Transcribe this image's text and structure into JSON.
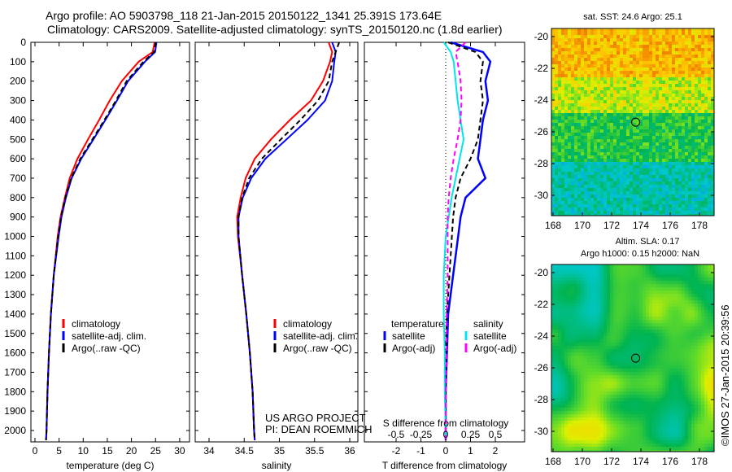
{
  "header": {
    "title1": "Argo profile: AO 5903798_118 21-Jan-2015 20150122_1341 25.391S 173.64E",
    "title2": "Climatology: CARS2009. Satellite-adjusted climatology: synTS_20150120.nc (1.8d earlier)"
  },
  "credit": {
    "project": "US ARGO PROJECT",
    "pi": "PI: DEAN ROEMMICH",
    "stamp": "©IMOS 27-Jan-2015 20:39:56"
  },
  "colors": {
    "clim": "#ff0000",
    "sat": "#0000ff",
    "argo": "#000000",
    "sat_s": "#00e5ee",
    "argo_s": "#ff00ff"
  },
  "chart_data": [
    {
      "type": "line",
      "id": "temperature",
      "xlabel": "temperature (deg C)",
      "xlim": [
        -1,
        31
      ],
      "xticks": [
        0,
        5,
        10,
        15,
        20,
        25,
        30
      ],
      "ylim": [
        0,
        2060
      ],
      "yticks": [
        0,
        100,
        200,
        300,
        400,
        500,
        600,
        700,
        800,
        900,
        1000,
        1100,
        1200,
        1300,
        1400,
        1500,
        1600,
        1700,
        1800,
        1900,
        2000
      ],
      "depth": [
        0,
        50,
        100,
        200,
        300,
        400,
        500,
        600,
        700,
        800,
        900,
        1000,
        1200,
        1400,
        1600,
        1800,
        2000,
        2050
      ],
      "legend": [
        "climatology",
        "satellite-adj. clim.",
        "Argo(..raw -QC)"
      ],
      "series": [
        {
          "name": "climatology",
          "values": [
            24.8,
            24.4,
            21.5,
            18,
            15.5,
            13.3,
            11,
            8.8,
            7.2,
            6.2,
            5.3,
            4.7,
            3.9,
            3.3,
            2.9,
            2.6,
            2.4,
            2.3
          ]
        },
        {
          "name": "satellite-adj. clim.",
          "values": [
            25.2,
            24.9,
            22.8,
            19.3,
            17,
            14.6,
            12.1,
            9.6,
            7.6,
            6.4,
            5.5,
            4.9,
            3.9,
            3.3,
            2.9,
            2.6,
            2.4,
            2.3
          ]
        },
        {
          "name": "Argo(..raw -QC)",
          "values": [
            25,
            24.7,
            22.5,
            19,
            16.8,
            14.4,
            11.9,
            9.4,
            7.5,
            6.3,
            5.4,
            4.8,
            3.9,
            3.3,
            2.9,
            2.6,
            2.4,
            2.3
          ]
        }
      ]
    },
    {
      "type": "line",
      "id": "salinity",
      "xlabel": "salinity",
      "xlim": [
        33.8,
        36.05
      ],
      "xticks": [
        34,
        34.5,
        35,
        35.5,
        36
      ],
      "depth": [
        0,
        50,
        100,
        200,
        300,
        400,
        500,
        600,
        700,
        800,
        900,
        1000,
        1200,
        1400,
        1600,
        1800,
        2000,
        2050
      ],
      "legend": [
        "climatology",
        "satellite-adj. clim.",
        "Argo(..raw -QC)"
      ],
      "series": [
        {
          "name": "climatology",
          "values": [
            35.7,
            35.75,
            35.72,
            35.62,
            35.45,
            35.15,
            34.88,
            34.65,
            34.52,
            34.45,
            34.4,
            34.41,
            34.47,
            34.53,
            34.58,
            34.62,
            34.64,
            34.65
          ]
        },
        {
          "name": "satellite-adj. clim.",
          "values": [
            35.75,
            35.8,
            35.78,
            35.75,
            35.65,
            35.4,
            35.1,
            34.8,
            34.6,
            34.48,
            34.42,
            34.42,
            34.47,
            34.53,
            34.58,
            34.62,
            34.64,
            34.65
          ]
        },
        {
          "name": "Argo(..raw -QC)",
          "values": [
            35.85,
            35.8,
            35.75,
            35.7,
            35.55,
            35.3,
            35.02,
            34.75,
            34.57,
            34.47,
            34.42,
            34.42,
            34.47,
            34.53,
            34.58,
            34.62,
            34.64,
            34.65
          ]
        }
      ]
    },
    {
      "type": "line",
      "id": "difference",
      "xlabel": "T difference from climatology",
      "x2label": "S difference from climatology",
      "xlim": [
        -3,
        3
      ],
      "xticks": [
        -2,
        -1,
        0,
        1,
        2
      ],
      "x2ticks": [
        "-0.5",
        "-0.25",
        "0",
        "0.25",
        "0.5"
      ],
      "s_to_t_scale": 4,
      "depth": [
        0,
        50,
        100,
        200,
        300,
        400,
        500,
        600,
        700,
        800,
        900,
        1000,
        1200,
        1400,
        1600,
        1800,
        2000,
        2050
      ],
      "legend_titles": [
        "temperature",
        "salinity"
      ],
      "legend": [
        "satellite",
        "Argo(-adj)",
        "satellite",
        "Argo(-adj)"
      ],
      "series": [
        {
          "name": "T satellite",
          "values": [
            0.2,
            1.5,
            1.8,
            1.6,
            1.7,
            1.5,
            1.4,
            1.3,
            1.6,
            0.8,
            0.6,
            0.5,
            0.3,
            0.1,
            0.05,
            0,
            0,
            0
          ]
        },
        {
          "name": "T Argo(-adj)",
          "values": [
            0.1,
            1.2,
            1.5,
            1.4,
            1.5,
            1.4,
            1.3,
            1.0,
            0.6,
            0.4,
            0.3,
            0.25,
            0.15,
            0.05,
            0,
            0,
            0,
            0
          ]
        },
        {
          "name": "S satellite",
          "values": [
            -0.02,
            0.05,
            0.08,
            0.1,
            0.12,
            0.15,
            0.18,
            0.14,
            0.1,
            0.06,
            0.03,
            0,
            -0.02,
            -0.02,
            -0.01,
            -0.01,
            0,
            0
          ]
        },
        {
          "name": "S Argo(-adj)",
          "values": [
            0.2,
            0.1,
            0.12,
            0.15,
            0.16,
            0.15,
            0.12,
            0.08,
            0.05,
            0.03,
            0.02,
            0.02,
            0.02,
            0.01,
            0.01,
            0,
            0,
            0
          ]
        }
      ]
    },
    {
      "type": "heatmap",
      "id": "sst-map",
      "title": "sat. SST: 24.6  Argo: 25.1",
      "xticks": [
        168,
        170,
        172,
        174,
        176,
        178
      ],
      "yticks": [
        -20,
        -22,
        -24,
        -26,
        -28,
        -30
      ],
      "xlim": [
        167.9,
        179.3
      ],
      "ylim": [
        -31.3,
        -19.5
      ],
      "marker": [
        173.64,
        -25.391
      ]
    },
    {
      "type": "heatmap",
      "id": "sla-map",
      "title": "Altim. SLA: 0.17",
      "title2": "Argo h1000: 0.15 h2000: NaN",
      "xticks": [
        168,
        170,
        172,
        174,
        176,
        178
      ],
      "yticks": [
        -20,
        -22,
        -24,
        -26,
        -28,
        -30
      ],
      "xlim": [
        167.9,
        179.3
      ],
      "ylim": [
        -31.3,
        -19.5
      ],
      "marker": [
        173.64,
        -25.391
      ]
    }
  ]
}
